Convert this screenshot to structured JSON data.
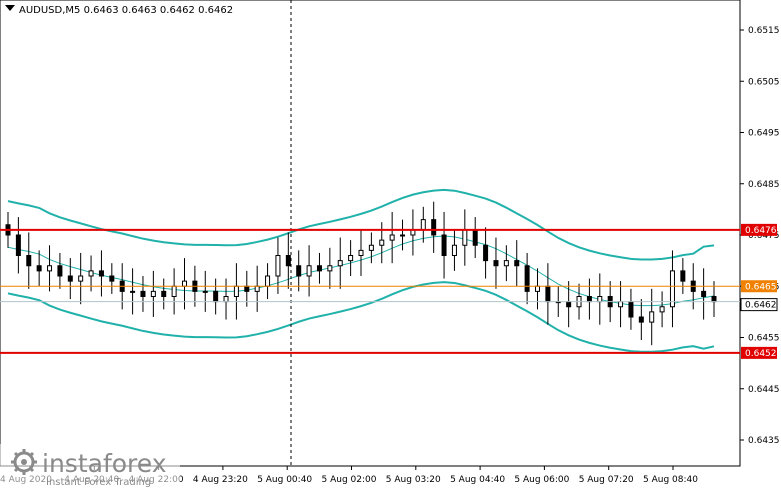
{
  "window": {
    "symbol_line": "AUDUSD,M5  0.6463 0.6463 0.6462 0.6462"
  },
  "price_axis": {
    "ticks": [
      "0.6515",
      "0.6505",
      "0.6495",
      "0.6485",
      "0.6475",
      "0.6465",
      "0.6455",
      "0.6445",
      "0.6435"
    ]
  },
  "time_axis": {
    "ticks": [
      "4 Aug 2020",
      "4 Aug 20:40",
      "4 Aug 22:00",
      "4 Aug 23:20",
      "5 Aug 00:40",
      "5 Aug 02:00",
      "5 Aug 03:20",
      "5 Aug 04:40",
      "5 Aug 06:00",
      "5 Aug 07:20",
      "5 Aug 08:40"
    ]
  },
  "levels": {
    "resistance": {
      "label": "0.6476",
      "color": "#e00000"
    },
    "support": {
      "label": "0.6452",
      "color": "#e00000"
    },
    "current_guide": {
      "label": "0.6465",
      "color": "#f08000"
    },
    "bid": {
      "label": "0.6462",
      "color": "#000000"
    }
  },
  "colors": {
    "bands": "#20b2aa",
    "candles": "#000000",
    "crosshair": "#000000"
  },
  "watermark": {
    "brand": "instaforex",
    "tagline": "Instant Forex Trading"
  },
  "chart_data": {
    "type": "candlestick",
    "title": "AUDUSD,M5  0.6463 0.6463 0.6462 0.6462",
    "symbol": "AUDUSD",
    "timeframe": "M5",
    "ohlc_current": [
      0.6463,
      0.6463,
      0.6462,
      0.6462
    ],
    "ylim": [
      0.6431,
      0.6521
    ],
    "indicators": [
      "Bollinger Bands"
    ],
    "horizontal_lines": [
      0.6476,
      0.6465,
      0.6452
    ],
    "close_series": [
      0.6475,
      0.6471,
      0.6469,
      0.6468,
      0.6469,
      0.6467,
      0.6466,
      0.6467,
      0.6468,
      0.6467,
      0.6466,
      0.6464,
      0.6464,
      0.6463,
      0.6464,
      0.6463,
      0.6465,
      0.6466,
      0.6464,
      0.6464,
      0.6462,
      0.6463,
      0.6465,
      0.6464,
      0.6465,
      0.6467,
      0.6471,
      0.6469,
      0.6467,
      0.6469,
      0.6468,
      0.6469,
      0.647,
      0.6471,
      0.6472,
      0.6473,
      0.6474,
      0.6475,
      0.6475,
      0.6476,
      0.6478,
      0.6475,
      0.6471,
      0.6473,
      0.6476,
      0.6473,
      0.647,
      0.6469,
      0.647,
      0.6469,
      0.6464,
      0.6465,
      0.6462,
      0.6462,
      0.6461,
      0.6463,
      0.6462,
      0.6463,
      0.6461,
      0.6462,
      0.6459,
      0.6458,
      0.646,
      0.6461,
      0.6468,
      0.6466,
      0.6464,
      0.6463,
      0.6462
    ]
  }
}
